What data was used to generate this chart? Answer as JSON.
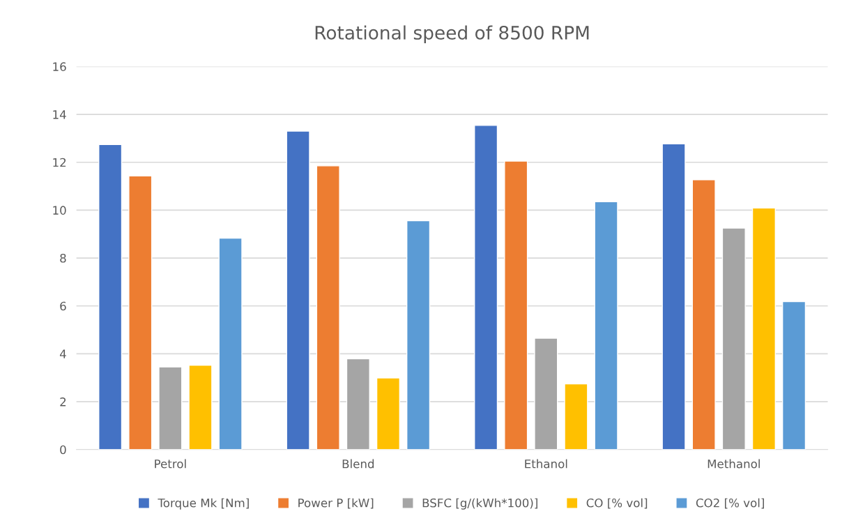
{
  "chart_data": {
    "type": "bar",
    "title": "Rotational speed of 8500 RPM",
    "categories": [
      "Petrol",
      "Blend",
      "Ethanol",
      "Methanol"
    ],
    "series": [
      {
        "name": "Torque Mk [Nm]",
        "color": "#4472c4",
        "values": [
          12.74,
          13.3,
          13.54,
          12.77
        ]
      },
      {
        "name": "Power P [kW]",
        "color": "#ed7d31",
        "values": [
          11.43,
          11.85,
          12.05,
          11.27
        ]
      },
      {
        "name": "BSFC [g/(kWh*100)]",
        "color": "#a5a5a5",
        "values": [
          3.45,
          3.79,
          4.65,
          9.25
        ]
      },
      {
        "name": "CO [% vol]",
        "color": "#ffc000",
        "values": [
          3.52,
          2.99,
          2.74,
          10.09
        ]
      },
      {
        "name": "CO2 [% vol]",
        "color": "#5b9bd5",
        "values": [
          8.83,
          9.56,
          10.35,
          6.18
        ]
      }
    ],
    "ylim": [
      0,
      16
    ],
    "yticks": [
      0,
      2,
      4,
      6,
      8,
      10,
      12,
      14,
      16
    ],
    "grid": "y",
    "legend": "bottom"
  }
}
